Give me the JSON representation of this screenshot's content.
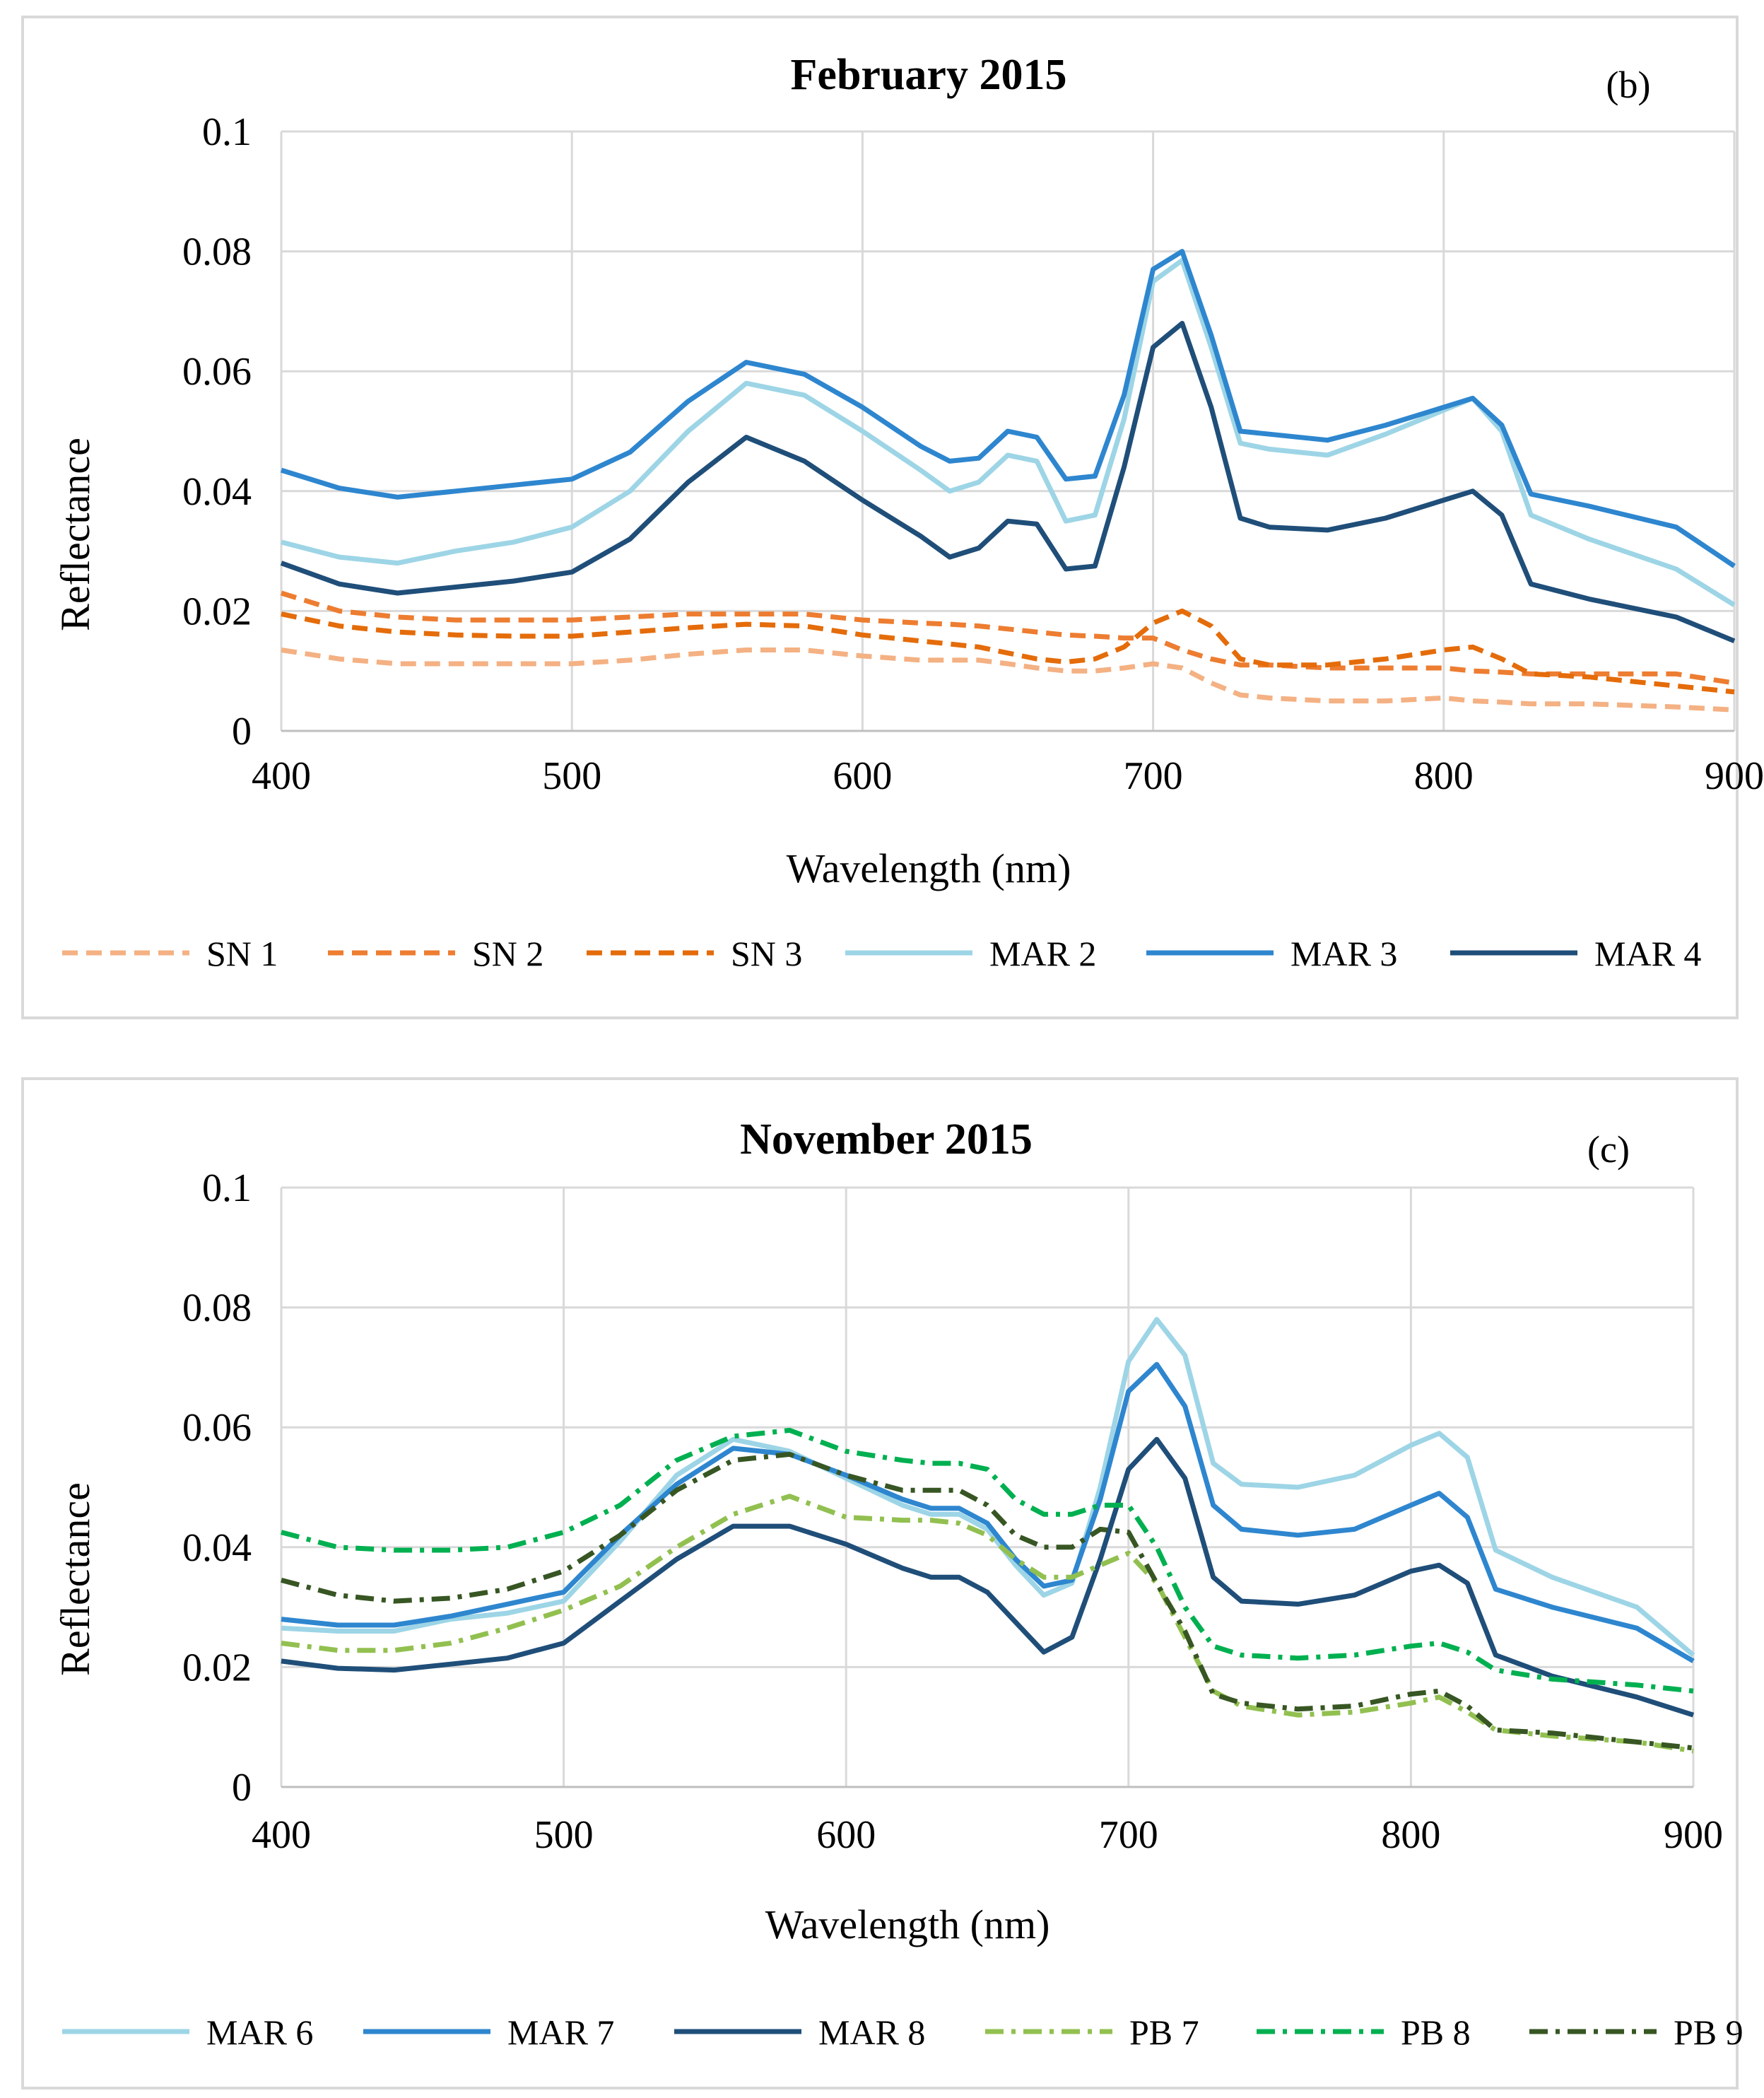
{
  "chart_data": [
    {
      "type": "line",
      "panel_label": "(b)",
      "title": "February 2015",
      "xlabel": "Wavelength (nm)",
      "ylabel": "Reflectance",
      "xlim": [
        400,
        900
      ],
      "ylim": [
        0,
        0.1
      ],
      "xticks": [
        "400",
        "500",
        "600",
        "700",
        "800",
        "900"
      ],
      "yticks": [
        "0",
        "0.02",
        "0.04",
        "0.06",
        "0.08",
        "0.1"
      ],
      "grid": true,
      "legend_position": "bottom",
      "x": [
        400,
        420,
        440,
        460,
        480,
        500,
        520,
        540,
        560,
        580,
        600,
        620,
        630,
        640,
        650,
        660,
        670,
        680,
        690,
        700,
        710,
        720,
        730,
        740,
        760,
        780,
        800,
        810,
        820,
        830,
        850,
        880,
        900
      ],
      "series": [
        {
          "name": "SN 1",
          "color": "#f4b183",
          "dash": "dashed",
          "values": [
            0.0135,
            0.012,
            0.0112,
            0.0112,
            0.0112,
            0.0112,
            0.0118,
            0.0128,
            0.0135,
            0.0135,
            0.0125,
            0.0118,
            0.0118,
            0.0118,
            0.0112,
            0.0105,
            0.01,
            0.01,
            0.0105,
            0.0112,
            0.0105,
            0.008,
            0.006,
            0.0055,
            0.005,
            0.005,
            0.0055,
            0.005,
            0.0048,
            0.0045,
            0.0045,
            0.004,
            0.0035
          ]
        },
        {
          "name": "SN 2",
          "color": "#ed7d31",
          "dash": "dashed",
          "values": [
            0.023,
            0.02,
            0.019,
            0.0185,
            0.0185,
            0.0185,
            0.019,
            0.0195,
            0.0195,
            0.0195,
            0.0185,
            0.018,
            0.0178,
            0.0175,
            0.017,
            0.0165,
            0.016,
            0.0158,
            0.0155,
            0.0155,
            0.0135,
            0.012,
            0.011,
            0.011,
            0.0105,
            0.0105,
            0.0105,
            0.01,
            0.0098,
            0.0095,
            0.0095,
            0.0095,
            0.008
          ]
        },
        {
          "name": "SN 3",
          "color": "#e46c0a",
          "dash": "dashed",
          "values": [
            0.0195,
            0.0175,
            0.0165,
            0.016,
            0.0158,
            0.0158,
            0.0165,
            0.0172,
            0.0178,
            0.0175,
            0.016,
            0.015,
            0.0145,
            0.014,
            0.013,
            0.012,
            0.0115,
            0.012,
            0.014,
            0.018,
            0.02,
            0.0175,
            0.012,
            0.011,
            0.011,
            0.012,
            0.0135,
            0.014,
            0.012,
            0.0095,
            0.009,
            0.0075,
            0.0065
          ]
        },
        {
          "name": "MAR 2",
          "color": "#9dd5e6",
          "dash": "solid",
          "values": [
            0.0315,
            0.029,
            0.028,
            0.03,
            0.0315,
            0.034,
            0.04,
            0.05,
            0.058,
            0.056,
            0.05,
            0.0435,
            0.04,
            0.0415,
            0.046,
            0.045,
            0.035,
            0.036,
            0.052,
            0.075,
            0.0785,
            0.064,
            0.048,
            0.047,
            0.046,
            0.0495,
            0.0535,
            0.0555,
            0.05,
            0.036,
            0.032,
            0.027,
            0.021
          ]
        },
        {
          "name": "MAR 3",
          "color": "#2e86cf",
          "dash": "solid",
          "values": [
            0.0435,
            0.0405,
            0.039,
            0.04,
            0.041,
            0.042,
            0.0465,
            0.055,
            0.0615,
            0.0595,
            0.054,
            0.0475,
            0.045,
            0.0455,
            0.05,
            0.049,
            0.042,
            0.0425,
            0.056,
            0.077,
            0.08,
            0.066,
            0.05,
            0.0495,
            0.0485,
            0.051,
            0.054,
            0.0555,
            0.051,
            0.0395,
            0.0375,
            0.034,
            0.0275
          ]
        },
        {
          "name": "MAR 4",
          "color": "#1f4e79",
          "dash": "solid",
          "values": [
            0.028,
            0.0245,
            0.023,
            0.024,
            0.025,
            0.0265,
            0.032,
            0.0415,
            0.049,
            0.045,
            0.0385,
            0.0325,
            0.029,
            0.0305,
            0.035,
            0.0345,
            0.027,
            0.0275,
            0.044,
            0.064,
            0.068,
            0.054,
            0.0355,
            0.034,
            0.0335,
            0.0355,
            0.0385,
            0.04,
            0.036,
            0.0245,
            0.022,
            0.019,
            0.015
          ]
        }
      ]
    },
    {
      "type": "line",
      "panel_label": "(c)",
      "title": "November 2015",
      "xlabel": "Wavelength (nm)",
      "ylabel": "Reflectance",
      "xlim": [
        400,
        900
      ],
      "ylim": [
        0,
        0.1
      ],
      "xticks": [
        "400",
        "500",
        "600",
        "700",
        "800",
        "900"
      ],
      "yticks": [
        "0",
        "0.02",
        "0.04",
        "0.06",
        "0.08",
        "0.1"
      ],
      "grid": true,
      "legend_position": "bottom",
      "x": [
        400,
        420,
        440,
        460,
        480,
        500,
        520,
        540,
        560,
        580,
        600,
        620,
        630,
        640,
        650,
        660,
        670,
        680,
        690,
        700,
        710,
        720,
        730,
        740,
        760,
        780,
        800,
        810,
        820,
        830,
        850,
        880,
        900
      ],
      "series": [
        {
          "name": "MAR 6",
          "color": "#9dd5e6",
          "dash": "solid",
          "values": [
            0.0265,
            0.026,
            0.026,
            0.028,
            0.029,
            0.031,
            0.041,
            0.052,
            0.058,
            0.056,
            0.0515,
            0.047,
            0.0455,
            0.0455,
            0.043,
            0.037,
            0.032,
            0.034,
            0.05,
            0.071,
            0.078,
            0.072,
            0.054,
            0.0505,
            0.05,
            0.052,
            0.057,
            0.059,
            0.055,
            0.0395,
            0.035,
            0.03,
            0.022
          ]
        },
        {
          "name": "MAR 7",
          "color": "#2e86cf",
          "dash": "solid",
          "values": [
            0.028,
            0.027,
            0.027,
            0.0285,
            0.0305,
            0.0325,
            0.042,
            0.0505,
            0.0565,
            0.0555,
            0.052,
            0.048,
            0.0465,
            0.0465,
            0.044,
            0.038,
            0.0335,
            0.0345,
            0.048,
            0.066,
            0.0705,
            0.0635,
            0.047,
            0.043,
            0.042,
            0.043,
            0.047,
            0.049,
            0.045,
            0.033,
            0.03,
            0.0265,
            0.021
          ]
        },
        {
          "name": "MAR 8",
          "color": "#1f4e79",
          "dash": "solid",
          "values": [
            0.021,
            0.0198,
            0.0195,
            0.0205,
            0.0215,
            0.024,
            0.031,
            0.038,
            0.0435,
            0.0435,
            0.0405,
            0.0365,
            0.035,
            0.035,
            0.0325,
            0.0275,
            0.0225,
            0.025,
            0.038,
            0.053,
            0.058,
            0.0515,
            0.035,
            0.031,
            0.0305,
            0.032,
            0.036,
            0.037,
            0.034,
            0.022,
            0.0185,
            0.015,
            0.012
          ]
        },
        {
          "name": "PB 7",
          "color": "#92c050",
          "dash": "dashdot",
          "values": [
            0.024,
            0.0228,
            0.0228,
            0.024,
            0.0265,
            0.0295,
            0.0335,
            0.04,
            0.0455,
            0.0485,
            0.045,
            0.0445,
            0.0445,
            0.044,
            0.042,
            0.038,
            0.035,
            0.035,
            0.037,
            0.039,
            0.034,
            0.025,
            0.016,
            0.0135,
            0.012,
            0.0125,
            0.014,
            0.015,
            0.0125,
            0.0095,
            0.0085,
            0.0075,
            0.006
          ]
        },
        {
          "name": "PB 8",
          "color": "#00b050",
          "dash": "dashdot",
          "values": [
            0.0425,
            0.04,
            0.0395,
            0.0395,
            0.04,
            0.0425,
            0.047,
            0.0545,
            0.0585,
            0.0595,
            0.056,
            0.0545,
            0.054,
            0.054,
            0.053,
            0.048,
            0.0455,
            0.0455,
            0.047,
            0.047,
            0.04,
            0.03,
            0.0235,
            0.022,
            0.0215,
            0.022,
            0.0235,
            0.024,
            0.0225,
            0.0195,
            0.018,
            0.017,
            0.016
          ]
        },
        {
          "name": "PB 9",
          "color": "#375623",
          "dash": "dashdot",
          "values": [
            0.0345,
            0.032,
            0.031,
            0.0315,
            0.033,
            0.036,
            0.042,
            0.0495,
            0.0545,
            0.0555,
            0.052,
            0.0495,
            0.0495,
            0.0495,
            0.047,
            0.042,
            0.04,
            0.04,
            0.043,
            0.0425,
            0.034,
            0.026,
            0.0155,
            0.014,
            0.013,
            0.0135,
            0.0155,
            0.016,
            0.0135,
            0.0095,
            0.009,
            0.0075,
            0.0065
          ]
        }
      ]
    }
  ]
}
